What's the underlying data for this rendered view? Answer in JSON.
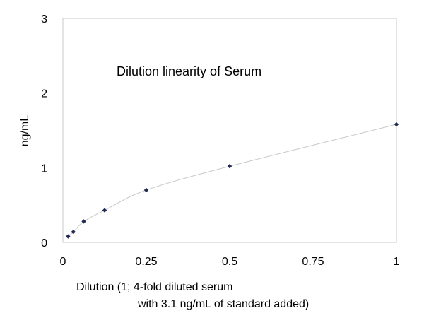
{
  "chart_data": {
    "type": "scatter",
    "title": "Dilution linearity of Serum",
    "xlabel_lines": [
      "Dilution (1; 4-fold diluted serum",
      "with 3.1 ng/mL of standard added)"
    ],
    "ylabel": "ng/mL",
    "xlim": [
      0,
      1
    ],
    "ylim": [
      0,
      3
    ],
    "xticks": [
      "0",
      "0.25",
      "0.5",
      "0.75",
      "1"
    ],
    "yticks": [
      "0",
      "1",
      "2",
      "3"
    ],
    "grid": false,
    "series": [
      {
        "x": [
          0.015625,
          0.03125,
          0.0625,
          0.125,
          0.25,
          0.5,
          1
        ],
        "y": [
          0.08,
          0.14,
          0.28,
          0.43,
          0.7,
          1.02,
          1.58
        ],
        "marker": "diamond",
        "marker_color": "#1f2a55",
        "line": "smooth",
        "line_color": "#c8c8c8"
      }
    ]
  }
}
